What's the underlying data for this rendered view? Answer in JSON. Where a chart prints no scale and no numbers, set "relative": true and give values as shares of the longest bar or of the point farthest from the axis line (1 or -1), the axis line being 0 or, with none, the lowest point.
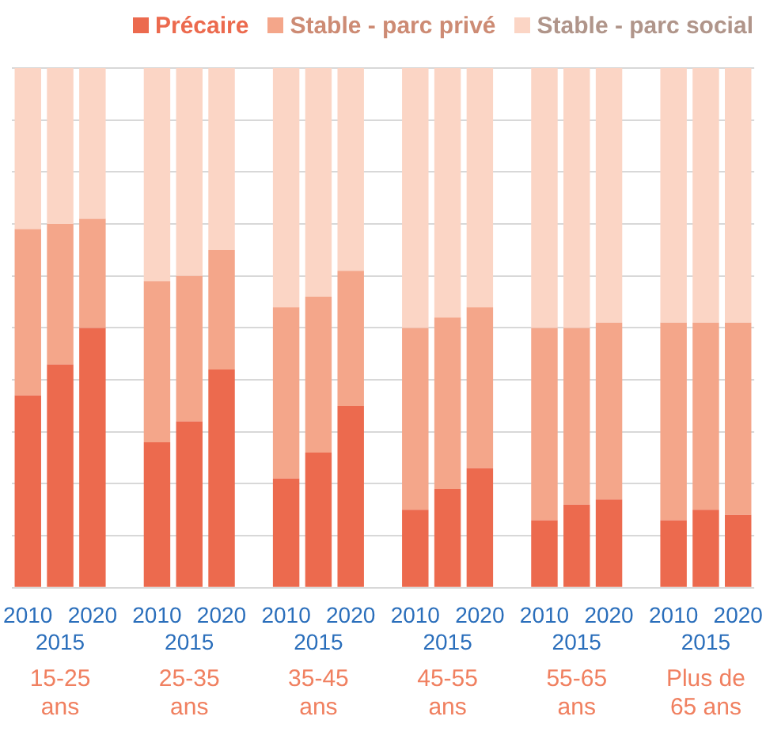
{
  "chart_data": {
    "type": "bar",
    "stacked": true,
    "relative": true,
    "grid": "y",
    "legend": "top right",
    "categories": [
      "2010",
      "2015",
      "2020",
      null,
      "2010",
      "2015",
      "2020",
      null,
      "2010",
      "2015",
      "2020",
      null,
      "2010",
      "2015",
      "2020",
      null,
      "2010",
      "2015",
      "2020",
      null,
      "2010",
      "2015",
      "2020"
    ],
    "series": [
      {
        "name": "Précaire",
        "color": "#ec6a4e",
        "values": [
          0.37,
          0.43,
          0.5,
          null,
          0.28,
          0.32,
          0.42,
          null,
          0.21,
          0.26,
          0.35,
          null,
          0.15,
          0.19,
          0.23,
          null,
          0.13,
          0.16,
          0.17,
          null,
          0.13,
          0.15,
          0.14
        ]
      },
      {
        "name": "Stable - parc privé",
        "color": "#f4a68a",
        "values": [
          0.32,
          0.27,
          0.21,
          null,
          0.31,
          0.28,
          0.23,
          null,
          0.33,
          0.3,
          0.26,
          null,
          0.35,
          0.33,
          0.31,
          null,
          0.37,
          0.34,
          0.34,
          null,
          0.38,
          0.36,
          0.37
        ]
      },
      {
        "name": "Stable - parc social",
        "color": "#fbd5c5",
        "values": [
          0.31,
          0.3,
          0.29,
          null,
          0.41,
          0.4,
          0.35,
          null,
          0.46,
          0.44,
          0.39,
          null,
          0.5,
          0.48,
          0.46,
          null,
          0.5,
          0.5,
          0.49,
          null,
          0.49,
          0.49,
          0.49
        ]
      }
    ],
    "annotations": [
      "15-25 ans",
      "25-35 ans",
      "35-45 ans",
      "45-55 ans",
      "55-65 ans",
      "Plus de 65 ans"
    ]
  }
}
